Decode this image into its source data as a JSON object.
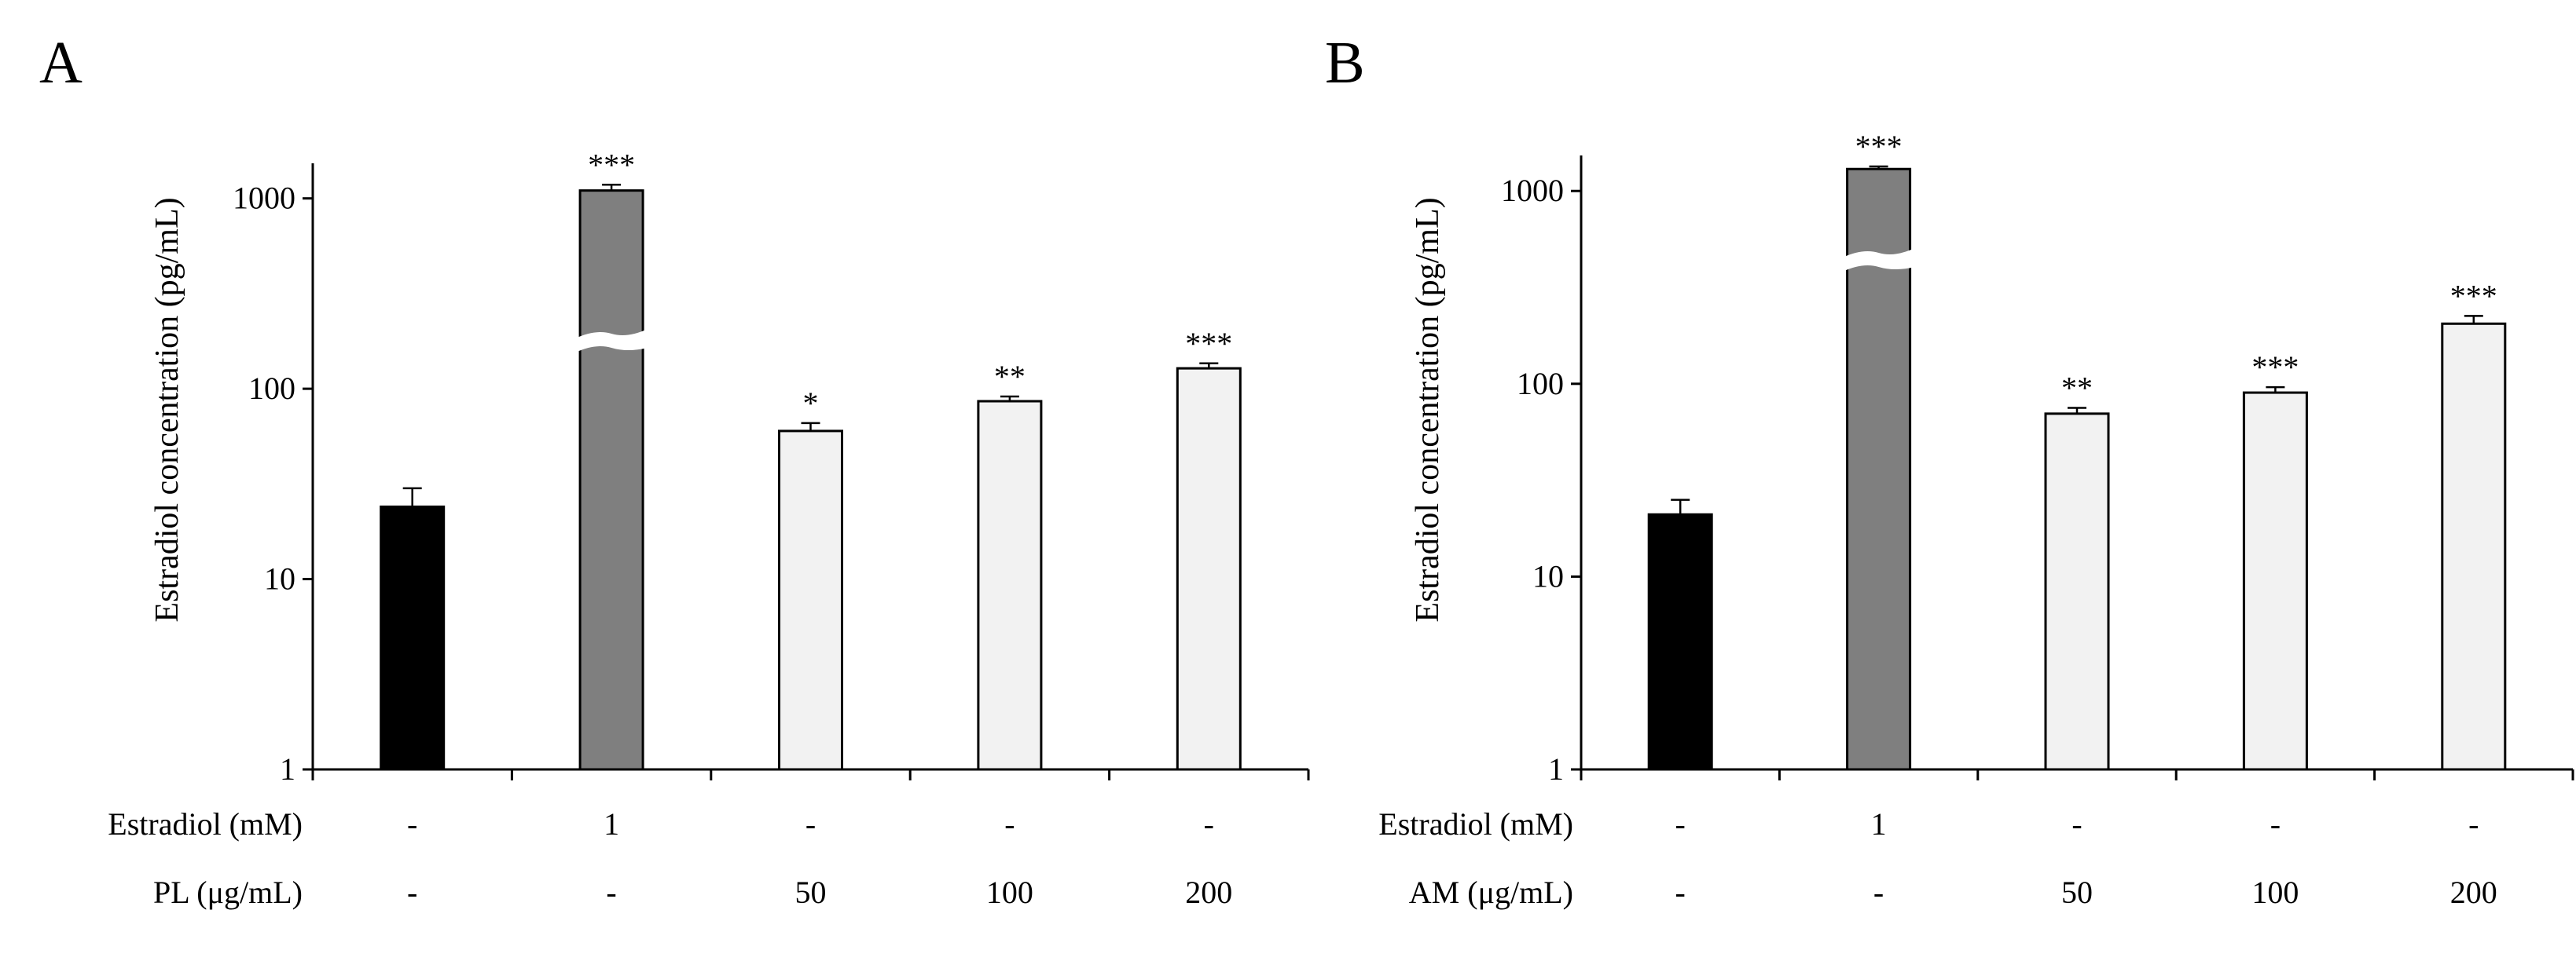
{
  "figure": {
    "panels": [
      "A",
      "B"
    ]
  },
  "chart_data": [
    {
      "panel": "A",
      "type": "bar",
      "yscale": "log",
      "ylim": [
        1,
        1500
      ],
      "yticks": [
        1,
        10,
        100,
        1000
      ],
      "ytick_labels": [
        "1",
        "10",
        "100",
        "1000"
      ],
      "ylabel": "Estradiol concentration (pg/mL)",
      "xlabel": "",
      "title": "",
      "grid": false,
      "axis_break_on_bar": 1,
      "bars": [
        {
          "value": 24,
          "error": 6,
          "color": "#000000",
          "stars": ""
        },
        {
          "value": 1100,
          "error": 80,
          "color": "#7f7f7f",
          "stars": "***"
        },
        {
          "value": 60,
          "error": 6,
          "color": "#f2f2f2",
          "stars": "*"
        },
        {
          "value": 86,
          "error": 5,
          "color": "#f2f2f2",
          "stars": "**"
        },
        {
          "value": 128,
          "error": 8,
          "color": "#f2f2f2",
          "stars": "***"
        }
      ],
      "conditions": [
        {
          "label": "Estradiol (mM)",
          "values": [
            "-",
            "1",
            "-",
            "-",
            "-"
          ]
        },
        {
          "label": "PL (μg/mL)",
          "values": [
            "-",
            "-",
            "50",
            "100",
            "200"
          ]
        }
      ]
    },
    {
      "panel": "B",
      "type": "bar",
      "yscale": "log",
      "ylim": [
        1,
        1500
      ],
      "yticks": [
        1,
        10,
        100,
        1000
      ],
      "ytick_labels": [
        "1",
        "10",
        "100",
        "1000"
      ],
      "ylabel": "Estradiol concentration (pg/mL)",
      "xlabel": "",
      "title": "",
      "grid": false,
      "axis_break_on_bar": 1,
      "bars": [
        {
          "value": 21,
          "error": 4,
          "color": "#000000",
          "stars": ""
        },
        {
          "value": 1300,
          "error": 40,
          "color": "#7f7f7f",
          "stars": "***"
        },
        {
          "value": 70,
          "error": 5,
          "color": "#f2f2f2",
          "stars": "**"
        },
        {
          "value": 90,
          "error": 6,
          "color": "#f2f2f2",
          "stars": "***"
        },
        {
          "value": 205,
          "error": 20,
          "color": "#f2f2f2",
          "stars": "***"
        }
      ],
      "conditions": [
        {
          "label": "Estradiol (mM)",
          "values": [
            "-",
            "1",
            "-",
            "-",
            "-"
          ]
        },
        {
          "label": "AM (μg/mL)",
          "values": [
            "-",
            "-",
            "50",
            "100",
            "200"
          ]
        }
      ]
    }
  ]
}
